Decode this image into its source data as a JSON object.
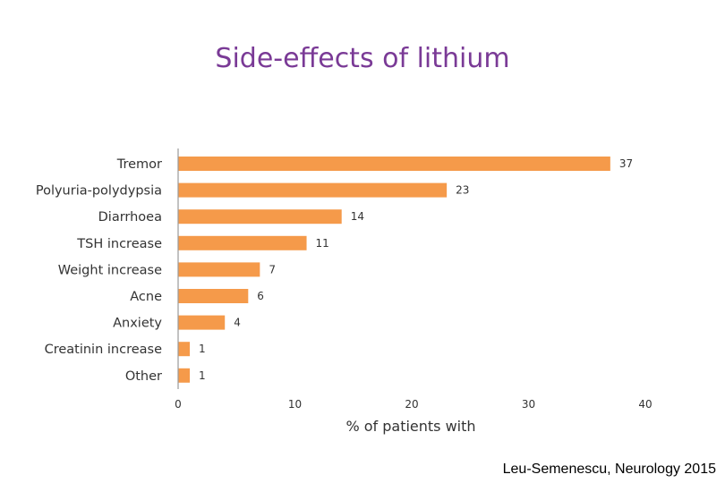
{
  "slide": {
    "citation": "Leu-Semenescu, Neurology 2015"
  },
  "colors": {
    "title": "#7a3a96",
    "bar": "#f59a4a",
    "axis": "#999999",
    "text": "#333333"
  },
  "chart_data": {
    "type": "bar",
    "orientation": "horizontal",
    "title": "Side-effects of lithium",
    "xlabel": "% of patients with",
    "ylabel": "",
    "xlim": [
      0,
      40
    ],
    "xticks": [
      0,
      10,
      20,
      30,
      40
    ],
    "grid": false,
    "categories": [
      "Tremor",
      "Polyuria-polydypsia",
      "Diarrhoea",
      "TSH increase",
      "Weight increase",
      "Acne",
      "Anxiety",
      "Creatinin increase",
      "Other"
    ],
    "values": [
      37,
      23,
      14,
      11,
      7,
      6,
      4,
      1,
      1
    ],
    "data_labels": true
  }
}
